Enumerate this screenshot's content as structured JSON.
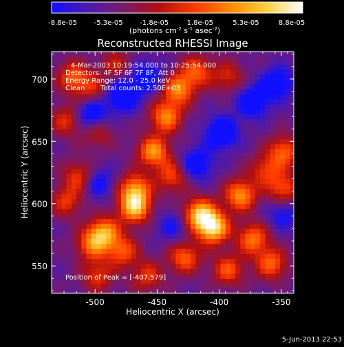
{
  "colorbar": {
    "tick_labels": [
      "-8.8e-05",
      "-5.3e-05",
      "-1.8e-05",
      "1.8e-05",
      "5.3e-05",
      "8.8e-05"
    ],
    "units_prefix": "(photons cm",
    "units_exp1": "-2",
    "units_mid": " s",
    "units_exp2": "-1",
    "units_mid2": " asec",
    "units_exp3": "-2",
    "units_suffix": ")",
    "colors": [
      "#1010ff",
      "#4a1ab0",
      "#7a1a6a",
      "#b01010",
      "#ff3a00",
      "#ff8a00",
      "#ffd040",
      "#ffffff"
    ]
  },
  "title": "Reconstructed RHESSI Image",
  "info": {
    "time_range": "4-Mar-2003 10:19:54.000 to 10:25:54.000",
    "detectors": "Detectors: 4F 5F 6F 7F 8F, Att 0",
    "energy": "Energy Range: 12.0 - 25.0 keV",
    "method": "Clean",
    "counts": "Total counts: 2.50E+03",
    "peak": "Position of Peak = [-407,579]"
  },
  "axes": {
    "xlabel": "Heliocentric X (arcsec)",
    "ylabel": "Heliocentric Y (arcsec)",
    "x_ticks": [
      "-500",
      "-450",
      "-400",
      "-350"
    ],
    "y_ticks": [
      "700",
      "650",
      "600",
      "550"
    ],
    "x_values": [
      -500,
      -450,
      -400,
      -350
    ],
    "y_values": [
      700,
      650,
      600,
      550
    ],
    "xlim": [
      -535,
      -340
    ],
    "ylim": [
      528,
      722
    ]
  },
  "image": {
    "blobs": [
      {
        "x": -407,
        "y": 579,
        "v": 1.0
      },
      {
        "x": -418,
        "y": 590,
        "v": 0.85
      },
      {
        "x": -470,
        "y": 595,
        "v": 0.85
      },
      {
        "x": -470,
        "y": 610,
        "v": 0.7
      },
      {
        "x": -455,
        "y": 640,
        "v": 0.75
      },
      {
        "x": -445,
        "y": 668,
        "v": 0.7
      },
      {
        "x": -435,
        "y": 690,
        "v": 0.7
      },
      {
        "x": -420,
        "y": 705,
        "v": 0.55
      },
      {
        "x": -495,
        "y": 575,
        "v": 0.75
      },
      {
        "x": -505,
        "y": 565,
        "v": 0.55
      },
      {
        "x": -480,
        "y": 560,
        "v": 0.55
      },
      {
        "x": -430,
        "y": 555,
        "v": 0.6
      },
      {
        "x": -385,
        "y": 605,
        "v": 0.75
      },
      {
        "x": -375,
        "y": 570,
        "v": 0.65
      },
      {
        "x": -360,
        "y": 550,
        "v": 0.6
      },
      {
        "x": -395,
        "y": 545,
        "v": 0.55
      },
      {
        "x": -350,
        "y": 610,
        "v": 0.55
      },
      {
        "x": -350,
        "y": 640,
        "v": 0.6
      },
      {
        "x": -365,
        "y": 625,
        "v": 0.45
      },
      {
        "x": -520,
        "y": 700,
        "v": 0.55
      },
      {
        "x": -505,
        "y": 690,
        "v": 0.4
      },
      {
        "x": -525,
        "y": 665,
        "v": 0.45
      },
      {
        "x": -515,
        "y": 620,
        "v": 0.5
      },
      {
        "x": -525,
        "y": 600,
        "v": 0.45
      },
      {
        "x": -500,
        "y": 540,
        "v": 0.45
      },
      {
        "x": -460,
        "y": 540,
        "v": 0.45
      },
      {
        "x": -395,
        "y": 700,
        "v": 0.4
      },
      {
        "x": -440,
        "y": 620,
        "v": 0.5
      },
      {
        "x": -500,
        "y": 655,
        "v": 0.35
      },
      {
        "x": -485,
        "y": 710,
        "v": 0.35
      }
    ],
    "holes": [
      {
        "x": -505,
        "y": 670,
        "v": -0.55
      },
      {
        "x": -480,
        "y": 685,
        "v": -0.6
      },
      {
        "x": -460,
        "y": 700,
        "v": -0.45
      },
      {
        "x": -400,
        "y": 655,
        "v": -0.6
      },
      {
        "x": -375,
        "y": 680,
        "v": -0.55
      },
      {
        "x": -355,
        "y": 695,
        "v": -0.5
      },
      {
        "x": -420,
        "y": 630,
        "v": -0.5
      },
      {
        "x": -500,
        "y": 615,
        "v": -0.4
      },
      {
        "x": -350,
        "y": 590,
        "v": -0.35
      },
      {
        "x": -440,
        "y": 580,
        "v": -0.3
      }
    ]
  }
}
